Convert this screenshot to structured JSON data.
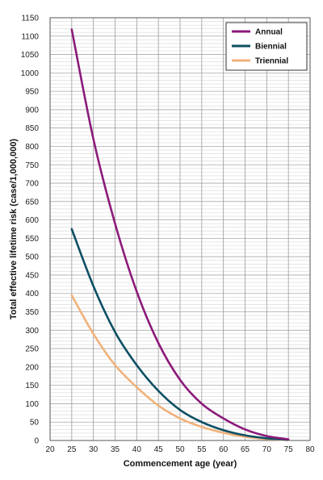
{
  "chart_data": {
    "type": "line",
    "xlabel": "Commencement age (year)",
    "ylabel": "Total effective lifetime risk (case/1,000,000)",
    "xlim": [
      20,
      80
    ],
    "ylim": [
      0,
      1150
    ],
    "x_ticks": [
      20,
      25,
      30,
      35,
      40,
      45,
      50,
      55,
      60,
      65,
      70,
      75,
      80
    ],
    "y_ticks": [
      0,
      50,
      100,
      150,
      200,
      250,
      300,
      350,
      400,
      450,
      500,
      550,
      600,
      650,
      700,
      750,
      800,
      850,
      900,
      950,
      1000,
      1050,
      1100,
      1150
    ],
    "grid": true,
    "legend_position": "top-right",
    "x": [
      25,
      30,
      35,
      40,
      45,
      50,
      55,
      60,
      65,
      70,
      75
    ],
    "series": [
      {
        "name": "Annual",
        "color": "#8b1a7a",
        "values": [
          1118,
          820,
          590,
          405,
          265,
          165,
          100,
          60,
          30,
          12,
          3
        ]
      },
      {
        "name": "Biennial",
        "color": "#0c4f63",
        "values": [
          575,
          420,
          295,
          205,
          135,
          83,
          50,
          28,
          14,
          6,
          2
        ]
      },
      {
        "name": "Triennial",
        "color": "#f0b27a",
        "values": [
          395,
          290,
          205,
          145,
          95,
          60,
          37,
          21,
          10,
          4,
          1
        ]
      }
    ]
  }
}
